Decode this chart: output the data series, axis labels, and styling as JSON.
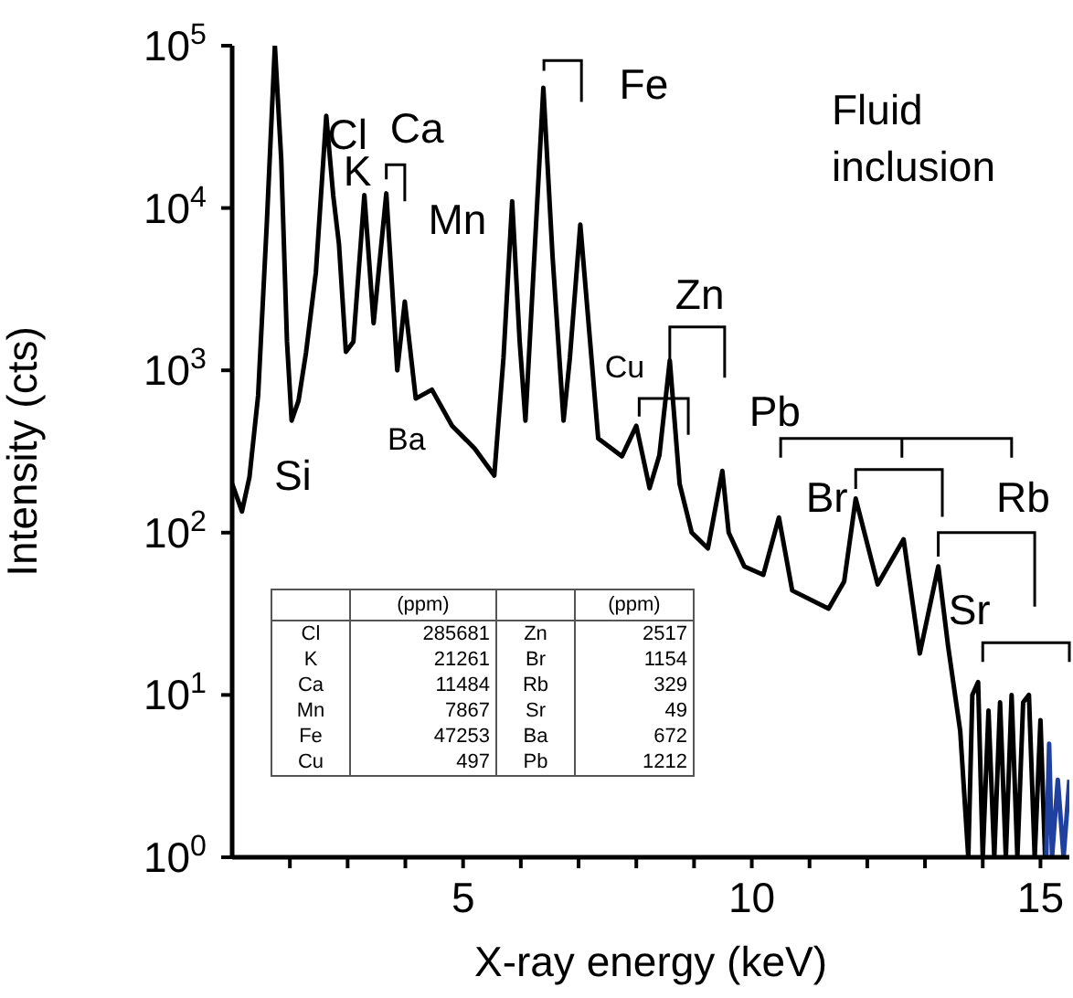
{
  "chart_data": {
    "type": "line",
    "xlabel": "X-ray energy (keV)",
    "ylabel": "Intensity (cts)",
    "log": "y",
    "xlim": [
      1,
      15.5
    ],
    "xticks": [
      {
        "value": 2,
        "label": null
      },
      {
        "value": 3,
        "label": null
      },
      {
        "value": 4,
        "label": null
      },
      5,
      {
        "value": 6,
        "label": null
      },
      {
        "value": 7,
        "label": null
      },
      {
        "value": 8,
        "label": null
      },
      {
        "value": 9,
        "label": null
      },
      10,
      {
        "value": 11,
        "label": null
      },
      {
        "value": 12,
        "label": null
      },
      {
        "value": 13,
        "label": null
      },
      {
        "value": 14,
        "label": null
      },
      15
    ],
    "ylim": [
      1,
      100000
    ],
    "yticks": [
      {
        "value": 1,
        "label": "10$^{0}$"
      },
      {
        "value": 10,
        "label": "10$^{1}$"
      },
      {
        "value": 100,
        "label": "10$^{2}$"
      },
      {
        "value": 1000,
        "label": "10$^{3}$"
      },
      {
        "value": 10000,
        "label": "10$^{4}$"
      },
      {
        "value": 100000,
        "label": "10$^{5}$"
      }
    ],
    "grid": false,
    "legend": false,
    "marker": "none",
    "line_style": "solid",
    "series": [
      {
        "color": "#000000",
        "x": [
          1.0,
          1.17,
          1.3,
          1.45,
          1.6,
          1.74,
          1.85,
          1.95,
          2.03,
          2.15,
          2.28,
          2.45,
          2.63,
          2.75,
          2.85,
          2.97,
          3.1,
          3.29,
          3.45,
          3.67,
          3.86,
          3.99,
          4.18,
          4.46,
          4.81,
          5.2,
          5.54,
          5.7,
          5.85,
          5.98,
          6.08,
          6.2,
          6.39,
          6.55,
          6.74,
          6.85,
          7.03,
          7.2,
          7.34,
          7.75,
          8.0,
          8.23,
          8.4,
          8.58,
          8.75,
          8.96,
          9.24,
          9.49,
          9.6,
          9.87,
          10.2,
          10.47,
          10.7,
          11.33,
          11.6,
          11.8,
          12.18,
          12.63,
          12.91,
          13.23,
          13.4,
          13.61,
          13.75,
          13.82,
          13.92,
          14.0,
          14.1,
          14.2,
          14.3,
          14.4,
          14.5,
          14.6,
          14.7,
          14.8,
          14.9,
          15.0,
          15.08
        ],
        "values": [
          200,
          135,
          220,
          700,
          8000,
          100000,
          20000,
          1500,
          490,
          650,
          1290,
          4000,
          37000,
          12000,
          6000,
          1300,
          1500,
          12000,
          1950,
          12300,
          1000,
          2650,
          670,
          760,
          455,
          330,
          225,
          1200,
          11000,
          1500,
          490,
          3000,
          55000,
          5000,
          490,
          1200,
          7900,
          1500,
          380,
          295,
          455,
          188,
          300,
          1150,
          200,
          100,
          80,
          240,
          100,
          62,
          55,
          124,
          44,
          34,
          50,
          162,
          48,
          91,
          18,
          62,
          20,
          6,
          1,
          10,
          12,
          1,
          8,
          1,
          9,
          1,
          10,
          1,
          9,
          10,
          1,
          7,
          1
        ]
      },
      {
        "color": "#2040a0",
        "x": [
          15.1,
          15.15,
          15.2,
          15.3,
          15.4,
          15.5
        ],
        "values": [
          1,
          5,
          1,
          3,
          1,
          3
        ]
      }
    ],
    "annotations": [
      "Si",
      "Cl",
      "K",
      "Ca",
      "Mn",
      "Fe",
      "Ba",
      "Cu",
      "Zn",
      "Pb",
      {
        "text": "Br",
        "x": 11.8,
        "y": 162
      },
      {
        "text": "Rb",
        "x": 13.23,
        "y": 62
      },
      "Sr",
      "Fluid inclusion",
      "(ppm)",
      "(ppm)",
      "Cl",
      "285681",
      "Zn",
      "2517",
      "K",
      "21261",
      "Br",
      "1154",
      "Ca",
      "11484",
      "Rb",
      "329",
      "Mn",
      "7867",
      "Sr",
      "49",
      "Fe",
      "47253",
      "Ba",
      "672",
      "Cu",
      "497",
      "Pb",
      "1212"
    ]
  }
}
